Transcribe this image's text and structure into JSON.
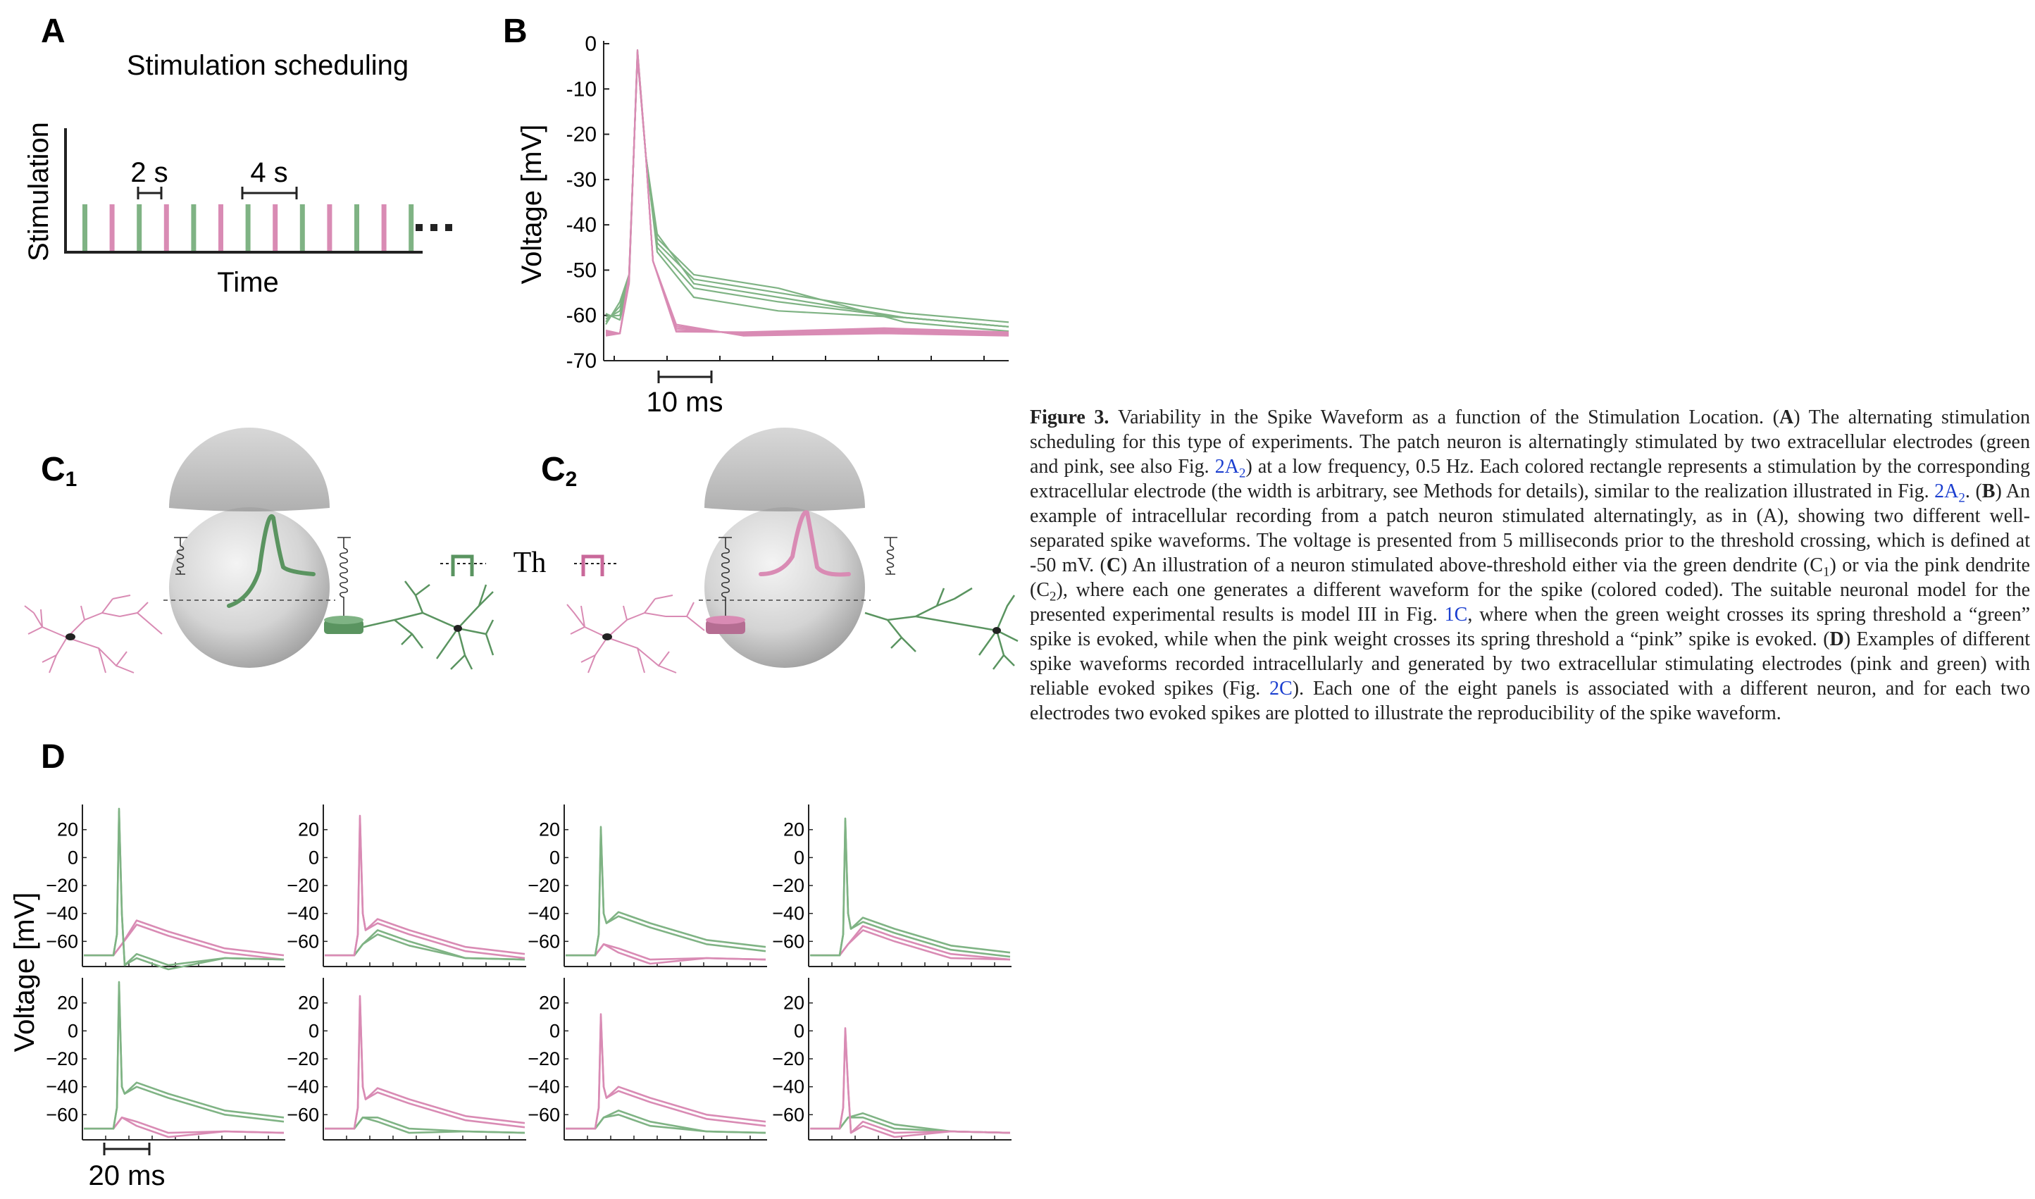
{
  "colors": {
    "green": "#7fb384",
    "pink": "#d98bb4",
    "dark_green": "#5a9460",
    "dark_pink": "#c9689a",
    "axis": "#222222"
  },
  "panels": {
    "A": {
      "label": "A",
      "title": "Stimulation scheduling",
      "ylabel": "Stimulation",
      "xlabel": "Time",
      "interval_short": "2 s",
      "interval_long": "4 s",
      "ellipsis": "..."
    },
    "B": {
      "label": "B",
      "ylabel": "Voltage [mV]",
      "scalebar": "10 ms"
    },
    "C1": {
      "label": "C",
      "sub": "1"
    },
    "C2": {
      "label": "C",
      "sub": "2"
    },
    "C_threshold": "Th",
    "D": {
      "label": "D",
      "ylabel": "Voltage [mV]",
      "scalebar": "20 ms"
    }
  },
  "chart_data": [
    {
      "panel": "A",
      "type": "bar",
      "title": "Stimulation scheduling",
      "xlabel": "Time",
      "ylabel": "Stimulation",
      "sequence": [
        "green",
        "pink",
        "green",
        "pink",
        "green",
        "pink",
        "green",
        "pink",
        "green",
        "pink",
        "green",
        "pink",
        "green"
      ],
      "interval_between_colors_s": 2,
      "interval_same_color_s": 4
    },
    {
      "panel": "B",
      "type": "line",
      "ylabel": "Voltage [mV]",
      "ylim": [
        -70,
        0
      ],
      "yticks": [
        0,
        -10,
        -20,
        -30,
        -40,
        -50,
        -60,
        -70
      ],
      "scalebar_ms": 10,
      "series": [
        {
          "color": "green",
          "spike_peak_mV": -3,
          "traces": [
            [
              -62,
              -52
            ],
            [
              -63,
              -50
            ],
            [
              -61,
              -51
            ],
            [
              -62,
              -53
            ],
            [
              -62,
              -55
            ]
          ]
        },
        {
          "color": "pink",
          "spike_peak_mV": -3,
          "traces": [
            [
              -65,
              -60
            ],
            [
              -64,
              -59
            ],
            [
              -65,
              -58
            ],
            [
              -64,
              -60
            ],
            [
              -65,
              -61
            ]
          ]
        }
      ]
    },
    {
      "panel": "D",
      "type": "line",
      "ylabel": "Voltage [mV]",
      "yticks": [
        20,
        0,
        -20,
        -40,
        -60
      ],
      "scalebar_ms": 20,
      "panels": [
        {
          "top": "green",
          "green_peak": 35,
          "pink_peak": -48,
          "green_hump": -72,
          "pink_hump": -48
        },
        {
          "top": "pink",
          "green_peak": -55,
          "pink_peak": 30,
          "green_hump": -55,
          "pink_hump": -47
        },
        {
          "top": "green",
          "green_peak": 22,
          "pink_peak": -70,
          "green_hump": -42,
          "pink_hump": -68
        },
        {
          "top": "green",
          "green_peak": 28,
          "pink_peak": -60,
          "green_hump": -46,
          "pink_hump": -52
        },
        {
          "top": "green",
          "green_peak": 35,
          "pink_peak": -68,
          "green_hump": -40,
          "pink_hump": -68
        },
        {
          "top": "pink",
          "green_peak": -65,
          "pink_peak": 25,
          "green_hump": -65,
          "pink_hump": -44
        },
        {
          "top": "pink",
          "green_peak": -60,
          "pink_peak": 12,
          "green_hump": -60,
          "pink_hump": -43
        },
        {
          "top": "pink",
          "green_peak": -62,
          "pink_peak": 2,
          "green_hump": -62,
          "pink_hump": -68
        }
      ]
    }
  ],
  "caption": {
    "label": "Figure 3.",
    "title": "Variability in the Spike Waveform as a function of the Stimulation Location.",
    "segments": [
      {
        "t": " ("
      },
      {
        "t": "A",
        "b": true
      },
      {
        "t": ") The alternating stimulation scheduling for this type of experiments. The patch neuron is alternatingly stimulated by two extracellular electrodes (green and pink, see also Fig. "
      },
      {
        "t": "2A",
        "ref": true,
        "sub": "2"
      },
      {
        "t": ") at a low frequency, 0.5 Hz. Each colored rectangle represents a stimulation by the corresponding extracellular electrode (the width is arbitrary, see Methods for details), similar to the realization illustrated in Fig. "
      },
      {
        "t": "2A",
        "ref": true,
        "sub": "2"
      },
      {
        "t": ". ("
      },
      {
        "t": "B",
        "b": true
      },
      {
        "t": ") An example of intracellular recording from a patch neuron stimulated alternatingly, as in (A), showing two different well-separated spike waveforms. The voltage is presented from 5 milliseconds prior to the threshold crossing, which is defined at -50 mV. ("
      },
      {
        "t": "C",
        "b": true
      },
      {
        "t": ") An illustration of a neuron stimulated above-threshold either via the green dendrite (C"
      },
      {
        "t": "",
        "sub": "1"
      },
      {
        "t": ") or via the pink dendrite (C"
      },
      {
        "t": "",
        "sub": "2"
      },
      {
        "t": "), where each one generates a different waveform for the spike (colored coded). The suitable neuronal model for the presented experimental results is model III in Fig. "
      },
      {
        "t": "1C",
        "ref": true
      },
      {
        "t": ", where when the green weight crosses its spring threshold a “green” spike is evoked, while when the pink weight crosses its spring threshold a “pink” spike is evoked. ("
      },
      {
        "t": "D",
        "b": true
      },
      {
        "t": ") Examples of different spike waveforms recorded intracellularly and generated by two extracellular stimulating electrodes (pink and green) with reliable evoked spikes (Fig. "
      },
      {
        "t": "2C",
        "ref": true
      },
      {
        "t": "). Each one of the eight panels is associated with a different neuron, and for each two electrodes two evoked spikes are plotted to illustrate the reproducibility of the spike waveform."
      }
    ]
  }
}
